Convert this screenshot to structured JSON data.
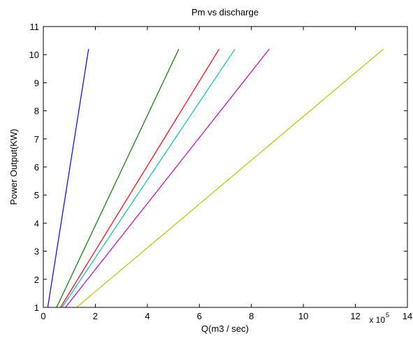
{
  "chart_data": {
    "type": "line",
    "title": "Pm vs discharge",
    "xlabel": "Q(m3 / sec)",
    "ylabel": "Power Output(KW)",
    "x_exponent_base": "x 10",
    "x_exponent_power": "5",
    "xlim": [
      0,
      14
    ],
    "ylim": [
      1,
      11
    ],
    "xticks": [
      0,
      2,
      4,
      6,
      8,
      10,
      12,
      14
    ],
    "yticks": [
      1,
      2,
      3,
      4,
      5,
      6,
      7,
      8,
      9,
      10,
      11
    ],
    "grid": false,
    "series": [
      {
        "color": "#0000ff",
        "x": [
          0.17,
          1.74
        ],
        "y": [
          1,
          10.2
        ]
      },
      {
        "color": "#007f00",
        "x": [
          0.51,
          5.21
        ],
        "y": [
          1,
          10.2
        ]
      },
      {
        "color": "#ff0000",
        "x": [
          0.66,
          6.76
        ],
        "y": [
          1,
          10.2
        ]
      },
      {
        "color": "#00bfbf",
        "x": [
          0.72,
          7.37
        ],
        "y": [
          1,
          10.2
        ]
      },
      {
        "color": "#bf00bf",
        "x": [
          0.85,
          8.69
        ],
        "y": [
          1,
          10.2
        ]
      },
      {
        "color": "#bfbf00",
        "x": [
          1.28,
          13.08
        ],
        "y": [
          1,
          10.2
        ]
      }
    ]
  }
}
